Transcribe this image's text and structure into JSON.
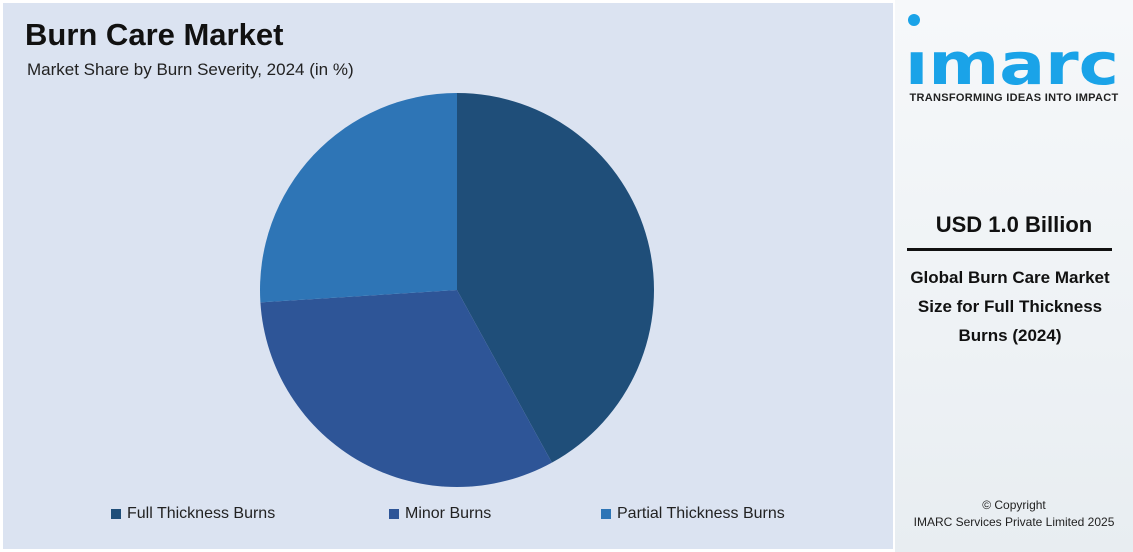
{
  "chart_data": {
    "type": "pie",
    "title": "Burn Care Market",
    "subtitle": "Market Share by Burn Severity, 2024 (in %)",
    "categories": [
      "Full Thickness Burns",
      "Minor Burns",
      "Partial Thickness Burns"
    ],
    "values": [
      42,
      32,
      26
    ],
    "colors": [
      "#1f4e79",
      "#2e5597",
      "#2e75b6"
    ],
    "start_angle": "top",
    "direction": "clockwise",
    "legend_position": "bottom"
  },
  "sidebar": {
    "logo_text": "imarc",
    "tagline": "TRANSFORMING IDEAS INTO IMPACT",
    "value": "USD 1.0 Billion",
    "description": "Global Burn Care Market Size for Full Thickness Burns (2024)",
    "copyright": "© Copyright",
    "company": "IMARC Services Private Limited 2025",
    "brand_color": "#1aa3e8"
  }
}
